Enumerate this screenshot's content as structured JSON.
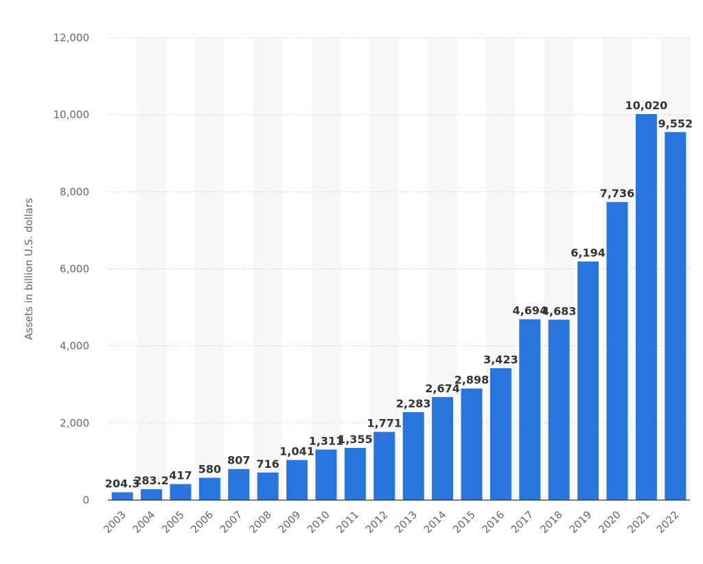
{
  "chart_data": {
    "type": "bar",
    "title": "",
    "xlabel": "",
    "ylabel": "Assets in billion U.S. dollars",
    "categories": [
      "2003",
      "2004",
      "2005",
      "2006",
      "2007",
      "2008",
      "2009",
      "2010",
      "2011",
      "2012",
      "2013",
      "2014",
      "2015",
      "2016",
      "2017",
      "2018",
      "2019",
      "2020",
      "2021",
      "2022"
    ],
    "values": [
      204.3,
      283.2,
      417,
      580,
      807,
      716,
      1041,
      1311,
      1355,
      1771,
      2283,
      2674,
      2898,
      3423,
      4694,
      4683,
      6194,
      7736,
      10020,
      9552
    ],
    "value_labels": [
      "204.3",
      "283.2",
      "417",
      "580",
      "807",
      "716",
      "1,041",
      "1,311",
      "1,355",
      "1,771",
      "2,283",
      "2,674",
      "2,898",
      "3,423",
      "4,694",
      "4,683",
      "6,194",
      "7,736",
      "10,020",
      "9,552"
    ],
    "yticks": [
      0,
      2000,
      4000,
      6000,
      8000,
      10000,
      12000
    ],
    "ytick_labels": [
      "0",
      "2,000",
      "4,000",
      "6,000",
      "8,000",
      "10,000",
      "12,000"
    ],
    "ylim": [
      0,
      12000
    ],
    "grid": true,
    "bar_color": "#2876dd",
    "band_color": "#f7f7f7"
  }
}
